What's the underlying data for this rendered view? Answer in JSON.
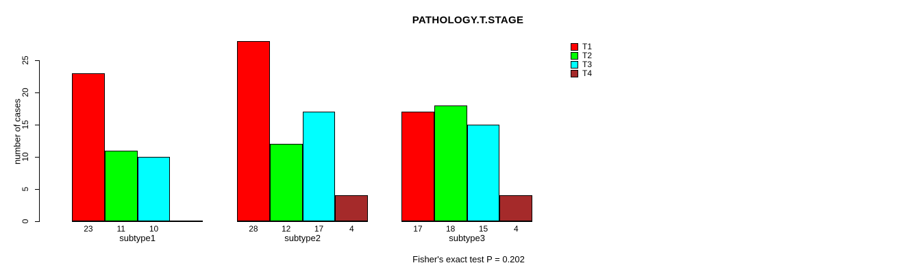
{
  "chart_data": {
    "type": "bar",
    "title": "PATHOLOGY.T.STAGE",
    "ylabel": "number of cases",
    "xlabel": "",
    "ylim": [
      0,
      28
    ],
    "yticks": [
      0,
      5,
      10,
      15,
      20,
      25
    ],
    "grid": false,
    "legend_position": "top-right",
    "categories": [
      "subtype1",
      "subtype2",
      "subtype3"
    ],
    "series": [
      {
        "name": "T1",
        "color": "#ff0000",
        "values": [
          23,
          28,
          17
        ]
      },
      {
        "name": "T2",
        "color": "#00ff00",
        "values": [
          11,
          12,
          18
        ]
      },
      {
        "name": "T3",
        "color": "#00ffff",
        "values": [
          10,
          17,
          15
        ]
      },
      {
        "name": "T4",
        "color": "#a52a2a",
        "values": [
          null,
          4,
          4
        ]
      }
    ],
    "bar_value_labels": true,
    "annotation": "Fisher's exact test P = 0.202"
  }
}
